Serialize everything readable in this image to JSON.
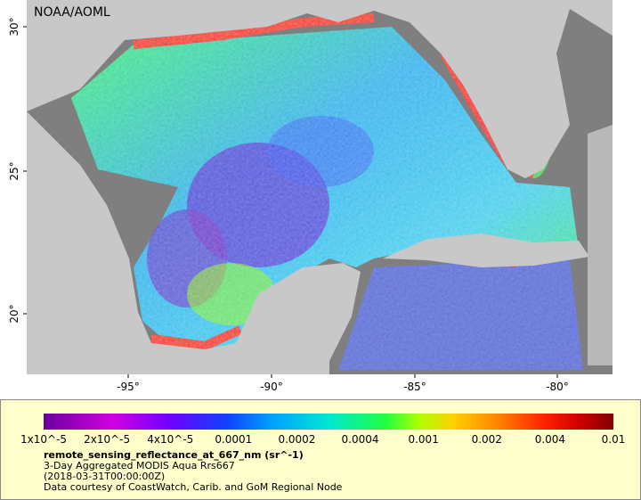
{
  "map": {
    "credit": "NOAA/AOML",
    "lat_labels": [
      "30°",
      "25°",
      "20°"
    ],
    "lon_labels": [
      "-95°",
      "-90°",
      "-85°",
      "-80°"
    ]
  },
  "colorbar": {
    "labels": [
      "1x10^-5",
      "2x10^-5",
      "4x10^-5",
      "0.0001",
      "0.0002",
      "0.0004",
      "0.001",
      "0.002",
      "0.004",
      "0.01"
    ]
  },
  "caption": {
    "variable": "remote_sensing_reflectance_at_667_nm (sr^-1)",
    "product": "3-Day Aggregated MODIS Aqua Rrs667",
    "date": "(2018-03-31T00:00:00Z)",
    "source": "Data courtesy of CoastWatch, Carib. and GoM Regional Node"
  }
}
